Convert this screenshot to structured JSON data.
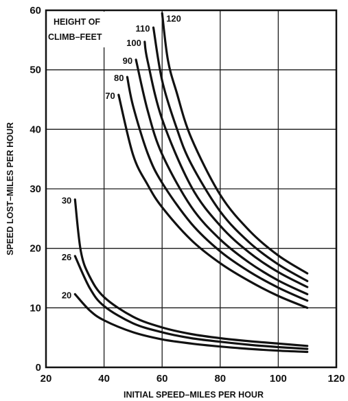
{
  "chart_data": {
    "type": "line",
    "xlabel": "INITIAL SPEED–MILES PER HOUR",
    "ylabel": "SPEED LOST–MILES PER HOUR",
    "xlim": [
      20,
      120
    ],
    "ylim": [
      0,
      60
    ],
    "xticks": [
      20,
      40,
      60,
      80,
      100,
      120
    ],
    "yticks": [
      0,
      10,
      20,
      30,
      40,
      50,
      60
    ],
    "grid": true,
    "legend": {
      "title_line1": "HEIGHT OF",
      "title_line2": "CLIMB–FEET",
      "placement": "top-left"
    },
    "series": [
      {
        "name": "20",
        "x": [
          30,
          35,
          40,
          50,
          60,
          70,
          80,
          90,
          100,
          110
        ],
        "y": [
          12.3,
          9.6,
          7.9,
          5.9,
          4.7,
          4.0,
          3.5,
          3.1,
          2.8,
          2.6
        ]
      },
      {
        "name": "26",
        "x": [
          30,
          35,
          40,
          50,
          60,
          70,
          80,
          90,
          100,
          110
        ],
        "y": [
          18.7,
          13.4,
          10.3,
          7.4,
          5.9,
          4.9,
          4.3,
          3.8,
          3.4,
          3.1
        ]
      },
      {
        "name": "30",
        "x": [
          30,
          32,
          35,
          40,
          50,
          60,
          70,
          80,
          90,
          100,
          110
        ],
        "y": [
          28.2,
          19.5,
          15.3,
          11.8,
          8.5,
          6.7,
          5.6,
          4.9,
          4.4,
          4.0,
          3.6
        ]
      },
      {
        "name": "70",
        "x": [
          45,
          50,
          55,
          60,
          70,
          80,
          90,
          100,
          110
        ],
        "y": [
          45.8,
          35.7,
          30.7,
          26.9,
          21.4,
          17.5,
          14.5,
          12.0,
          10.0
        ]
      },
      {
        "name": "80",
        "x": [
          48,
          50,
          55,
          60,
          70,
          80,
          90,
          100,
          110
        ],
        "y": [
          48.8,
          43.9,
          36.0,
          31.0,
          24.2,
          19.5,
          16.1,
          13.4,
          11.2
        ]
      },
      {
        "name": "90",
        "x": [
          51,
          55,
          60,
          70,
          80,
          90,
          100,
          110
        ],
        "y": [
          51.7,
          43.2,
          35.8,
          27.0,
          21.5,
          17.6,
          14.6,
          12.3
        ]
      },
      {
        "name": "100",
        "x": [
          54,
          55,
          60,
          70,
          80,
          90,
          100,
          110
        ],
        "y": [
          54.7,
          51.5,
          41.7,
          30.4,
          23.8,
          19.3,
          16.0,
          13.5
        ]
      },
      {
        "name": "110",
        "x": [
          57,
          60,
          65,
          70,
          80,
          90,
          100,
          110
        ],
        "y": [
          57.1,
          48.2,
          40.2,
          34.2,
          26.2,
          21.0,
          17.3,
          14.5
        ]
      },
      {
        "name": "120",
        "x": [
          60,
          62,
          65,
          70,
          80,
          90,
          100,
          110
        ],
        "y": [
          59.5,
          51.6,
          46.2,
          38.6,
          29.0,
          23.0,
          18.8,
          15.8
        ]
      }
    ],
    "curve_labels": [
      "20",
      "26",
      "30",
      "70",
      "80",
      "90",
      "100",
      "110",
      "120"
    ]
  }
}
